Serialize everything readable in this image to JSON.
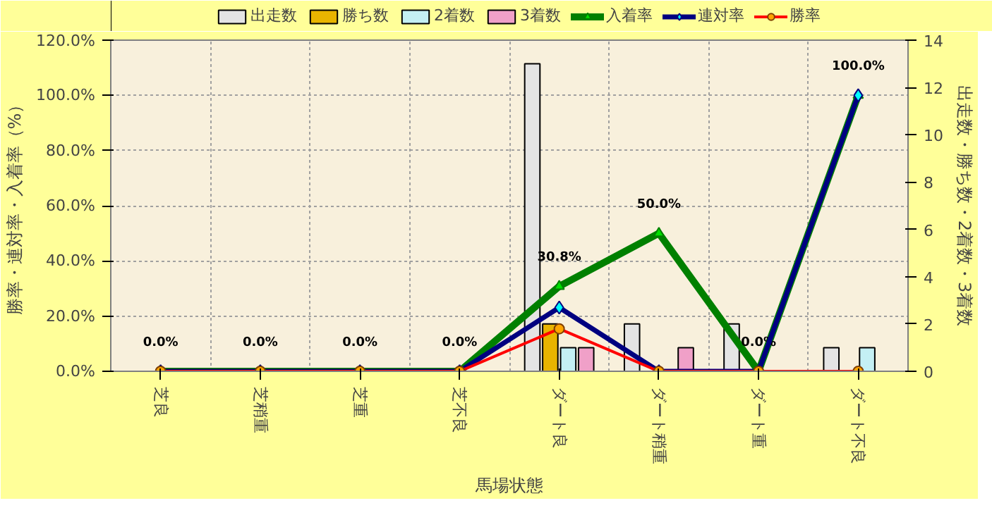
{
  "chart_data": {
    "type": "bar",
    "xlabel": "馬場状態",
    "ylabel": "勝率・連対率・入着率（%）",
    "y2label": "出走数・勝ち数・2着数・3着数",
    "categories": [
      "芝良",
      "芝稍重",
      "芝重",
      "芝不良",
      "ダート良",
      "ダート稍重",
      "ダート重",
      "ダート不良"
    ],
    "series": [
      {
        "name": "出走数",
        "color": "#e4e4e4",
        "axis": "y2",
        "values": [
          0,
          0,
          0,
          0,
          13,
          2,
          2,
          1
        ]
      },
      {
        "name": "勝ち数",
        "color": "#e8b400",
        "axis": "y2",
        "values": [
          0,
          0,
          0,
          0,
          2,
          0,
          0,
          0
        ]
      },
      {
        "name": "2着数",
        "color": "#c4f0f4",
        "axis": "y2",
        "values": [
          0,
          0,
          0,
          0,
          1,
          0,
          0,
          1
        ]
      },
      {
        "name": "3着数",
        "color": "#f0a0c8",
        "axis": "y2",
        "values": [
          0,
          0,
          0,
          0,
          1,
          1,
          0,
          0
        ]
      },
      {
        "name": "入着率",
        "type": "line",
        "color": "#008000",
        "marker": "triangle",
        "values": [
          0,
          0,
          0,
          0,
          30.8,
          50.0,
          0,
          100.0
        ],
        "value_labels": [
          "0.0%",
          "0.0%",
          "0.0%",
          "0.0%",
          "30.8%",
          "50.0%",
          "0.0%",
          "100.0%"
        ]
      },
      {
        "name": "連対率",
        "type": "line",
        "color": "#000080",
        "marker": "diamond",
        "values": [
          0,
          0,
          0,
          0,
          23.1,
          0,
          0,
          100.0
        ]
      },
      {
        "name": "勝率",
        "type": "line",
        "color": "#ff0000",
        "marker": "circle",
        "values": [
          0,
          0,
          0,
          0,
          15.4,
          0,
          0,
          0
        ]
      }
    ],
    "ylim": [
      0,
      120
    ],
    "yticks": [
      {
        "value": 0,
        "label": "0.0%"
      },
      {
        "value": 20,
        "label": "20.0%"
      },
      {
        "value": 40,
        "label": "40.0%"
      },
      {
        "value": 60,
        "label": "60.0%"
      },
      {
        "value": 80,
        "label": "80.0%"
      },
      {
        "value": 100,
        "label": "100.0%"
      },
      {
        "value": 120,
        "label": "120.0%"
      }
    ],
    "y2lim": [
      0,
      14
    ],
    "y2ticks": [
      0,
      2,
      4,
      6,
      8,
      10,
      12,
      14
    ],
    "grid": true,
    "legend": "top",
    "line_style": "solid"
  }
}
